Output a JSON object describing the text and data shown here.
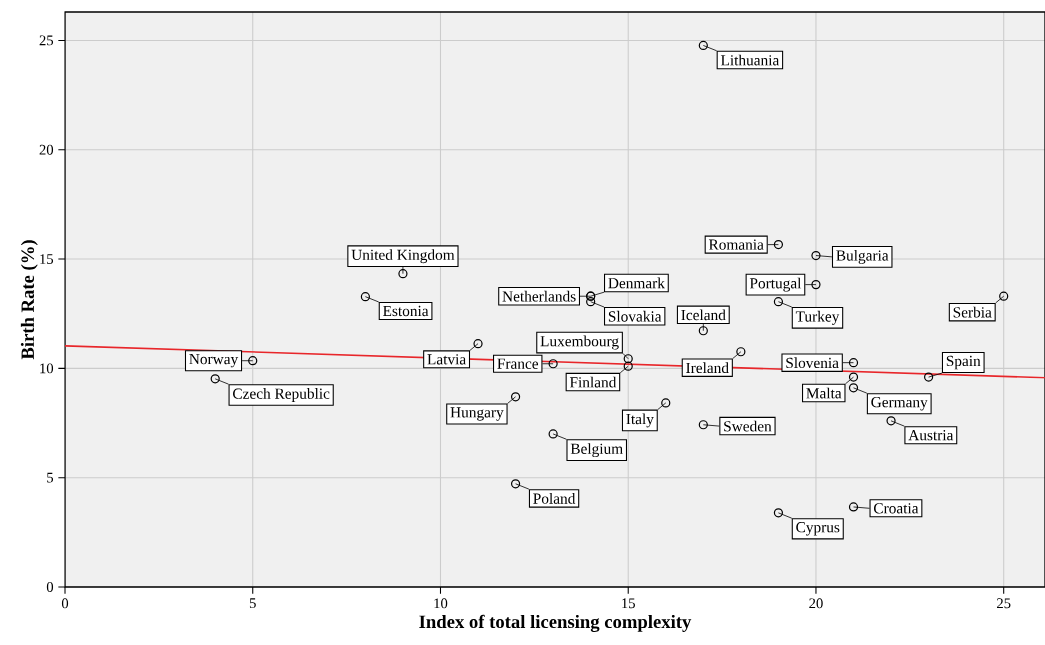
{
  "chart_data": {
    "type": "scatter",
    "xlabel": "Index of total licensing complexity",
    "ylabel": "Birth Rate (%)",
    "xlim": [
      0,
      26.1
    ],
    "ylim": [
      0,
      26.3
    ],
    "xticks": [
      0,
      5,
      10,
      15,
      20,
      25
    ],
    "yticks": [
      0,
      5,
      10,
      15,
      20,
      25
    ],
    "grid": true,
    "series": [
      {
        "marker": "circle",
        "color": "#000000",
        "x": [
          17,
          9,
          8,
          5,
          4,
          11,
          13,
          12,
          13,
          12,
          14,
          14,
          14,
          15,
          15,
          16,
          17,
          18,
          17,
          19,
          20,
          19,
          20,
          21,
          21,
          21,
          23,
          22,
          21,
          19,
          25
        ],
        "values": [
          24.77,
          14.33,
          13.28,
          10.35,
          9.52,
          11.13,
          10.21,
          8.7,
          7.0,
          4.72,
          13.3,
          13.3,
          13.05,
          10.44,
          10.1,
          8.42,
          11.72,
          10.76,
          7.42,
          15.66,
          13.83,
          13.05,
          15.16,
          10.26,
          9.6,
          9.11,
          9.6,
          7.6,
          3.66,
          3.39,
          13.3
        ]
      },
      {
        "type": "line",
        "color": "#e8262a",
        "x": [
          0,
          26.1
        ],
        "values": [
          11.03,
          9.57
        ]
      }
    ],
    "annotations": [
      {
        "text": "Lithuania",
        "x": 17,
        "y": 24.77
      },
      {
        "text": "United Kingdom",
        "x": 9,
        "y": 14.33
      },
      {
        "text": "Estonia",
        "x": 8,
        "y": 13.28
      },
      {
        "text": "Norway",
        "x": 5,
        "y": 10.35
      },
      {
        "text": "Czech Republic",
        "x": 4,
        "y": 9.52
      },
      {
        "text": "Latvia",
        "x": 11,
        "y": 11.13
      },
      {
        "text": "France",
        "x": 13,
        "y": 10.21
      },
      {
        "text": "Hungary",
        "x": 12,
        "y": 8.7
      },
      {
        "text": "Belgium",
        "x": 13,
        "y": 7.0
      },
      {
        "text": "Poland",
        "x": 12,
        "y": 4.72
      },
      {
        "text": "Netherlands",
        "x": 14,
        "y": 13.3
      },
      {
        "text": "Denmark",
        "x": 14,
        "y": 13.3
      },
      {
        "text": "Slovakia",
        "x": 14,
        "y": 13.05
      },
      {
        "text": "Luxembourg",
        "x": 15,
        "y": 10.44
      },
      {
        "text": "Finland",
        "x": 15,
        "y": 10.1
      },
      {
        "text": "Italy",
        "x": 16,
        "y": 8.42
      },
      {
        "text": "Iceland",
        "x": 17,
        "y": 11.72
      },
      {
        "text": "Ireland",
        "x": 18,
        "y": 10.76
      },
      {
        "text": "Sweden",
        "x": 17,
        "y": 7.42
      },
      {
        "text": "Romania",
        "x": 19,
        "y": 15.66
      },
      {
        "text": "Portugal",
        "x": 20,
        "y": 13.83
      },
      {
        "text": "Turkey",
        "x": 19,
        "y": 13.05
      },
      {
        "text": "Bulgaria",
        "x": 20,
        "y": 15.16
      },
      {
        "text": "Slovenia",
        "x": 21,
        "y": 10.26
      },
      {
        "text": "Malta",
        "x": 21,
        "y": 9.6
      },
      {
        "text": "Germany",
        "x": 21,
        "y": 9.11
      },
      {
        "text": "Spain",
        "x": 23,
        "y": 9.6
      },
      {
        "text": "Austria",
        "x": 22,
        "y": 7.6
      },
      {
        "text": "Croatia",
        "x": 21,
        "y": 3.66
      },
      {
        "text": "Cyprus",
        "x": 19,
        "y": 3.39
      },
      {
        "text": "Serbia",
        "x": 25,
        "y": 13.3
      }
    ]
  }
}
